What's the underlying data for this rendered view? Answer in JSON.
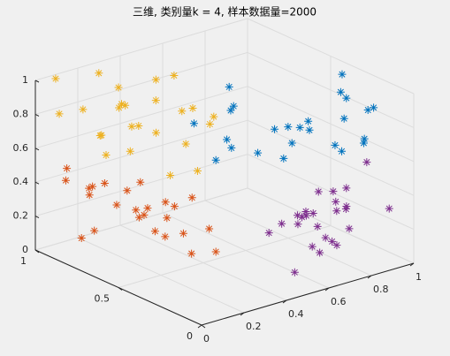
{
  "chart_data": {
    "type": "scatter3d",
    "title": "三维, 类别量k = 4, 样本数据量=2000",
    "xlim": [
      0,
      1
    ],
    "ylim": [
      0,
      1
    ],
    "zlim": [
      0,
      1
    ],
    "xticks": [
      0,
      0.2,
      0.4,
      0.6,
      0.8,
      1
    ],
    "yticks": [
      0,
      0.5,
      1
    ],
    "zticks": [
      0,
      0.2,
      0.4,
      0.6,
      0.8,
      1
    ],
    "grid": true,
    "marker": "asterisk",
    "series": [
      {
        "color": "#EDB120",
        "x": [
          0.05,
          0.12,
          0.33,
          0.41,
          0.22,
          0.08,
          0.47,
          0.29,
          0.15,
          0.38,
          0.02,
          0.26,
          0.44,
          0.18,
          0.35,
          0.1,
          0.49,
          0.31,
          0.06,
          0.24,
          0.4,
          0.14,
          0.36,
          0.2,
          0.45
        ],
        "y": [
          0.92,
          0.65,
          0.8,
          0.45,
          0.71,
          0.98,
          0.55,
          0.87,
          0.38,
          0.76,
          0.6,
          0.95,
          0.68,
          0.84,
          0.5,
          0.73,
          0.9,
          0.42,
          0.79,
          0.58,
          0.97,
          0.66,
          0.88,
          0.35,
          0.74
        ],
        "z": [
          0.82,
          0.95,
          0.7,
          0.88,
          0.63,
          0.99,
          0.77,
          0.91,
          0.66,
          0.85,
          0.73,
          0.97,
          0.8,
          0.68,
          0.93,
          0.76,
          0.87,
          0.61,
          0.9,
          0.79,
          0.72,
          0.96,
          0.65,
          0.84,
          0.98
        ]
      },
      {
        "color": "#D95319",
        "x": [
          0.1,
          0.3,
          0.45,
          0.05,
          0.22,
          0.38,
          0.15,
          0.48,
          0.27,
          0.08,
          0.34,
          0.19,
          0.42,
          0.02,
          0.25,
          0.4,
          0.12,
          0.31,
          0.46,
          0.07,
          0.36,
          0.17,
          0.29,
          0.44,
          0.2
        ],
        "y": [
          0.85,
          0.6,
          0.95,
          0.72,
          0.5,
          0.88,
          0.4,
          0.67,
          0.99,
          0.55,
          0.78,
          0.92,
          0.45,
          0.7,
          0.83,
          0.62,
          0.97,
          0.35,
          0.75,
          0.9,
          0.52,
          0.8,
          0.65,
          0.93,
          0.58
        ],
        "z": [
          0.1,
          0.35,
          0.05,
          0.48,
          0.22,
          0.15,
          0.4,
          0.28,
          0.02,
          0.52,
          0.18,
          0.33,
          0.08,
          0.45,
          0.25,
          0.12,
          0.38,
          0.3,
          0.2,
          0.5,
          0.06,
          0.42,
          0.16,
          0.27,
          0.36
        ]
      },
      {
        "color": "#7E2F8E",
        "x": [
          0.6,
          0.85,
          0.72,
          0.95,
          0.55,
          0.8,
          0.67,
          0.9,
          0.75,
          0.58,
          0.99,
          0.7,
          0.83,
          0.62,
          0.93,
          0.78,
          0.52,
          0.88,
          0.65,
          0.97,
          0.73,
          0.82,
          0.57,
          0.91,
          0.69
        ],
        "y": [
          0.1,
          0.3,
          0.05,
          0.4,
          0.22,
          0.15,
          0.45,
          0.02,
          0.33,
          0.18,
          0.27,
          0.08,
          0.48,
          0.12,
          0.38,
          0.25,
          0.06,
          0.42,
          0.2,
          0.35,
          0.14,
          0.47,
          0.03,
          0.29,
          0.17
        ],
        "z": [
          0.2,
          0.05,
          0.4,
          0.15,
          0.3,
          0.45,
          0.1,
          0.35,
          0.25,
          0.02,
          0.48,
          0.18,
          0.08,
          0.38,
          0.22,
          0.12,
          0.42,
          0.28,
          0.32,
          0.06,
          0.46,
          0.14,
          0.36,
          0.24,
          0.1
        ]
      },
      {
        "color": "#0072BD",
        "x": [
          0.5,
          0.75,
          0.9,
          0.62,
          0.45,
          0.85,
          0.7,
          0.98,
          0.55,
          0.8,
          0.67,
          0.93,
          0.42,
          0.78,
          0.6,
          0.88,
          0.52,
          0.72,
          0.96,
          0.65,
          0.83,
          0.58,
          0.91,
          0.48,
          0.77
        ],
        "y": [
          0.3,
          0.1,
          0.5,
          0.2,
          0.62,
          0.05,
          0.4,
          0.25,
          0.55,
          0.15,
          0.68,
          0.35,
          0.45,
          0.02,
          0.6,
          0.28,
          0.12,
          0.48,
          0.38,
          0.65,
          0.08,
          0.22,
          0.52,
          0.42,
          0.18
        ],
        "z": [
          0.7,
          0.9,
          0.6,
          0.85,
          0.75,
          0.95,
          0.55,
          0.8,
          0.65,
          0.98,
          0.72,
          0.88,
          0.62,
          0.78,
          0.92,
          0.58,
          0.83,
          0.68,
          0.96,
          0.52,
          0.76,
          0.86,
          0.64,
          0.93,
          0.7
        ]
      }
    ]
  }
}
